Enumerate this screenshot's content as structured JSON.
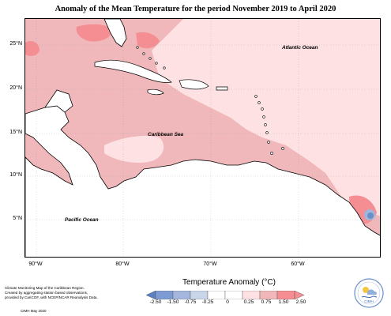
{
  "title": "Anomaly of the Mean Temperature for the period November 2019 to April 2020",
  "map": {
    "labels": {
      "atlantic": "Atlantic Ocean",
      "caribbean": "Caribbean Sea",
      "pacific": "Pacific Ocean"
    },
    "lat_ticks": [
      "25°N",
      "20°N",
      "15°N",
      "10°N",
      "5°N"
    ],
    "lon_ticks": [
      "90°W",
      "80°W",
      "70°W",
      "60°W"
    ],
    "colors": {
      "pale_pink": "#fde1e3",
      "light_red": "#f0b8bb",
      "red": "#f58e92",
      "light_blue": "#9fb7dc",
      "blue": "#6c8ec7",
      "land": "#ffffff"
    }
  },
  "legend": {
    "title": "Temperature Anomaly (°C)",
    "ticks": [
      "-2.50",
      "-1.50",
      "-0.75",
      "-0.25",
      "0",
      "0.25",
      "0.75",
      "1.50",
      "2.50"
    ],
    "colors": [
      "#5b7fc2",
      "#7f9bd3",
      "#a4b6dc",
      "#c9d5e8",
      "#ffffff",
      "#fde1e3",
      "#f0b8bb",
      "#f58e92"
    ]
  },
  "credits": {
    "lines": [
      "Climate Monitoring Map of the Caribbean Region.",
      "Created by aggregating station based observations,",
      "provided by CariCOF, with NCEP/NCAR Reanalysis Data."
    ],
    "date": "CIMH May 2020"
  },
  "logo": {
    "text": "CIMH",
    "icon": "cimh-logo-icon"
  }
}
